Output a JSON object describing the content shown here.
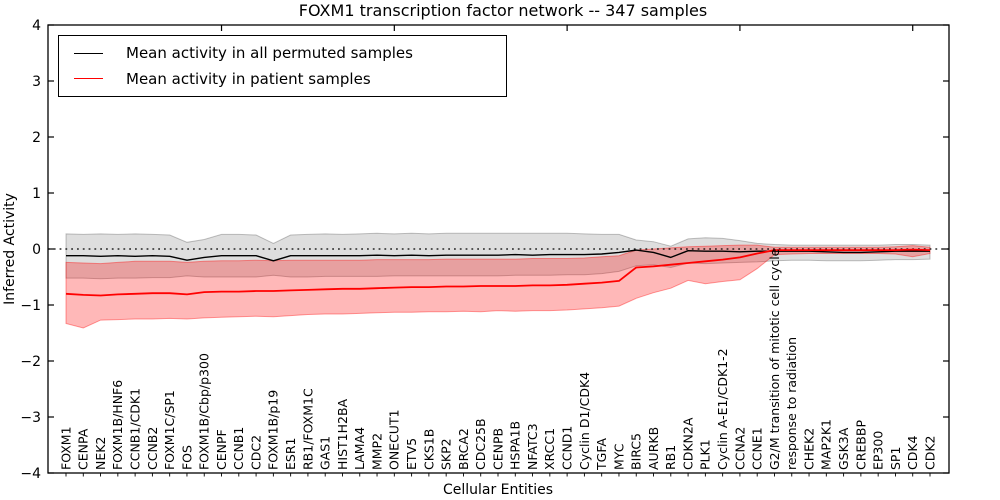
{
  "chart_data": {
    "type": "line",
    "title": "FOXM1 transcription factor network -- 347 samples",
    "xlabel": "Cellular Entities",
    "ylabel": "Inferred Activity",
    "ylim": [
      -4,
      4
    ],
    "yticks": [
      -4,
      -3,
      -2,
      -1,
      0,
      1,
      2,
      3,
      4
    ],
    "ytick_labels": [
      "−4",
      "−3",
      "−2",
      "−1",
      "0",
      "1",
      "2",
      "3",
      "4"
    ],
    "grid": false,
    "legend_position": "upper left",
    "zero_line": {
      "y": 0,
      "style": "dotted",
      "color": "#000000"
    },
    "top_ticks_every": 10,
    "background_color": "#ffffff",
    "categories": [
      "FOXM1",
      "CENPA",
      "NEK2",
      "FOXM1B/HNF6",
      "CCNB1/CDK1",
      "CCNB2",
      "FOXM1C/SP1",
      "FOS",
      "FOXM1B/Cbp/p300",
      "CENPF",
      "CCNB1",
      "CDC2",
      "FOXM1B/p19",
      "ESR1",
      "RB1/FOXM1C",
      "GAS1",
      "HIST1H2BA",
      "LAMA4",
      "MMP2",
      "ONECUT1",
      "ETV5",
      "CKS1B",
      "SKP2",
      "BRCA2",
      "CDC25B",
      "CENPB",
      "HSPA1B",
      "NFATC3",
      "XRCC1",
      "CCND1",
      "Cyclin D1/CDK4",
      "TGFA",
      "MYC",
      "BIRC5",
      "AURKB",
      "RB1",
      "CDKN2A",
      "PLK1",
      "Cyclin A-E1/CDK1-2",
      "CCNA2",
      "CCNE1",
      "G2/M transition of mitotic cell cycle",
      "response to radiation",
      "CHEK2",
      "MAP2K1",
      "GSK3A",
      "CREBBP",
      "EP300",
      "SP1",
      "CDK4",
      "CDK2"
    ],
    "series": [
      {
        "name": "Mean activity in all permuted samples",
        "key": "permuted",
        "color": "#000000",
        "line_width": 1.4,
        "band_color": "#000000",
        "band_alpha": 0.13,
        "values": [
          -0.12,
          -0.12,
          -0.13,
          -0.12,
          -0.13,
          -0.12,
          -0.13,
          -0.2,
          -0.15,
          -0.12,
          -0.12,
          -0.12,
          -0.21,
          -0.12,
          -0.12,
          -0.12,
          -0.12,
          -0.12,
          -0.11,
          -0.12,
          -0.11,
          -0.12,
          -0.11,
          -0.11,
          -0.11,
          -0.11,
          -0.1,
          -0.11,
          -0.1,
          -0.1,
          -0.1,
          -0.09,
          -0.06,
          -0.02,
          -0.06,
          -0.15,
          -0.03,
          -0.04,
          -0.04,
          -0.05,
          -0.04,
          -0.04,
          -0.04,
          -0.04,
          -0.05,
          -0.06,
          -0.06,
          -0.05,
          -0.04,
          -0.04,
          -0.04
        ],
        "band_upper": [
          0.27,
          0.26,
          0.27,
          0.26,
          0.27,
          0.26,
          0.25,
          0.12,
          0.17,
          0.26,
          0.26,
          0.25,
          0.1,
          0.25,
          0.26,
          0.27,
          0.26,
          0.27,
          0.28,
          0.27,
          0.28,
          0.27,
          0.28,
          0.28,
          0.28,
          0.28,
          0.28,
          0.28,
          0.28,
          0.28,
          0.27,
          0.26,
          0.26,
          0.16,
          0.13,
          0.05,
          0.18,
          0.2,
          0.19,
          0.15,
          0.1,
          0.08,
          0.07,
          0.07,
          0.07,
          0.07,
          0.07,
          0.07,
          0.08,
          0.08,
          0.07
        ],
        "band_lower": [
          -0.52,
          -0.52,
          -0.53,
          -0.52,
          -0.52,
          -0.51,
          -0.51,
          -0.48,
          -0.5,
          -0.5,
          -0.5,
          -0.5,
          -0.47,
          -0.5,
          -0.5,
          -0.49,
          -0.49,
          -0.49,
          -0.49,
          -0.48,
          -0.48,
          -0.48,
          -0.48,
          -0.48,
          -0.48,
          -0.48,
          -0.47,
          -0.47,
          -0.47,
          -0.46,
          -0.46,
          -0.44,
          -0.4,
          -0.3,
          -0.28,
          -0.33,
          -0.25,
          -0.26,
          -0.25,
          -0.24,
          -0.23,
          -0.21,
          -0.2,
          -0.2,
          -0.21,
          -0.21,
          -0.21,
          -0.2,
          -0.19,
          -0.19,
          -0.18
        ]
      },
      {
        "name": "Mean activity in patient samples",
        "key": "patient",
        "color": "#ff0000",
        "line_width": 1.8,
        "band_color": "#ff0000",
        "band_alpha": 0.28,
        "values": [
          -0.8,
          -0.82,
          -0.83,
          -0.81,
          -0.8,
          -0.79,
          -0.79,
          -0.81,
          -0.77,
          -0.76,
          -0.76,
          -0.75,
          -0.75,
          -0.74,
          -0.73,
          -0.72,
          -0.71,
          -0.71,
          -0.7,
          -0.69,
          -0.68,
          -0.68,
          -0.67,
          -0.67,
          -0.66,
          -0.66,
          -0.66,
          -0.65,
          -0.65,
          -0.64,
          -0.62,
          -0.6,
          -0.57,
          -0.33,
          -0.31,
          -0.28,
          -0.25,
          -0.22,
          -0.19,
          -0.15,
          -0.08,
          -0.02,
          -0.02,
          -0.02,
          -0.02,
          -0.02,
          -0.02,
          -0.02,
          -0.02,
          -0.01,
          -0.02
        ],
        "band_upper": [
          -0.24,
          -0.25,
          -0.26,
          -0.24,
          -0.22,
          -0.22,
          -0.22,
          -0.24,
          -0.22,
          -0.21,
          -0.21,
          -0.2,
          -0.21,
          -0.2,
          -0.2,
          -0.2,
          -0.2,
          -0.2,
          -0.19,
          -0.19,
          -0.19,
          -0.19,
          -0.18,
          -0.18,
          -0.18,
          -0.18,
          -0.18,
          -0.17,
          -0.17,
          -0.17,
          -0.16,
          -0.14,
          -0.12,
          -0.02,
          0.0,
          0.02,
          0.04,
          0.05,
          0.06,
          0.07,
          0.07,
          0.03,
          0.03,
          0.03,
          0.03,
          0.03,
          0.03,
          0.03,
          0.04,
          0.06,
          0.03
        ],
        "band_lower": [
          -1.33,
          -1.41,
          -1.27,
          -1.26,
          -1.25,
          -1.25,
          -1.24,
          -1.25,
          -1.23,
          -1.22,
          -1.21,
          -1.2,
          -1.21,
          -1.19,
          -1.17,
          -1.16,
          -1.16,
          -1.15,
          -1.14,
          -1.13,
          -1.13,
          -1.12,
          -1.12,
          -1.11,
          -1.12,
          -1.1,
          -1.11,
          -1.1,
          -1.1,
          -1.09,
          -1.07,
          -1.05,
          -1.02,
          -0.88,
          -0.78,
          -0.7,
          -0.56,
          -0.62,
          -0.58,
          -0.55,
          -0.35,
          -0.1,
          -0.09,
          -0.08,
          -0.08,
          -0.08,
          -0.08,
          -0.08,
          -0.09,
          -0.14,
          -0.08
        ]
      }
    ]
  }
}
